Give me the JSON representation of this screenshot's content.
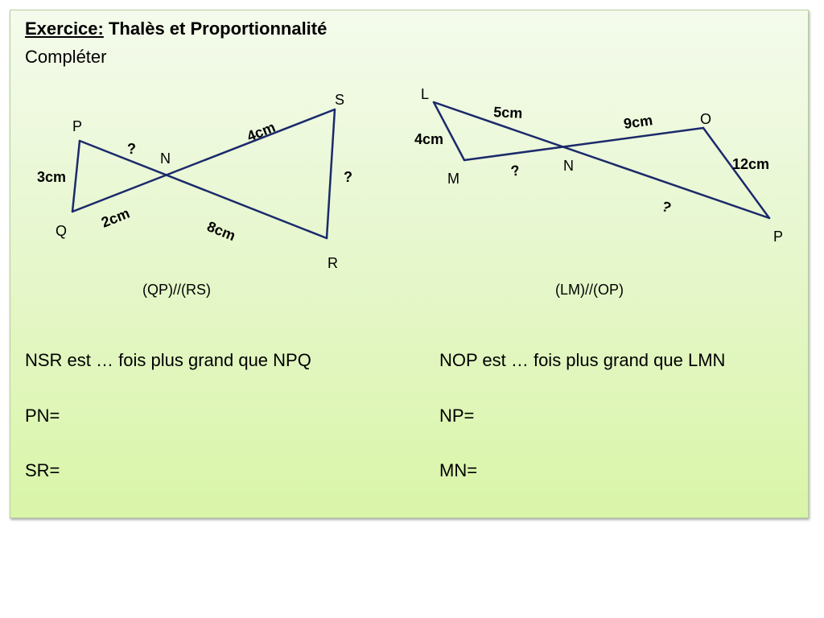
{
  "title": {
    "prefix": "Exercice:",
    "main": "Thalès et Proportionnalité"
  },
  "subtitle": "Compléter",
  "figure1": {
    "points": {
      "P": "P",
      "Q": "Q",
      "N": "N",
      "R": "R",
      "S": "S"
    },
    "labels": {
      "PQ": "3cm",
      "PN": "?",
      "QN": "2cm",
      "NS": "4cm",
      "NR": "8cm",
      "SR": "?"
    },
    "condition": "(QP)//(RS)"
  },
  "figure2": {
    "points": {
      "L": "L",
      "M": "M",
      "N": "N",
      "O": "O",
      "P": "P"
    },
    "labels": {
      "LN": "5cm",
      "LM": "4cm",
      "MN": "?",
      "NO": "9cm",
      "OP": "12cm",
      "NP": "?"
    },
    "condition": "(LM)//(OP)"
  },
  "questions": {
    "left": [
      "NSR est … fois plus grand que NPQ",
      "PN=",
      "SR="
    ],
    "right": [
      "NOP est … fois plus grand que LMN",
      "NP=",
      "MN="
    ]
  },
  "colors": {
    "line": "#1b2a6b",
    "background_top": "#f4fbec",
    "background_bottom": "#d9f5a8"
  }
}
